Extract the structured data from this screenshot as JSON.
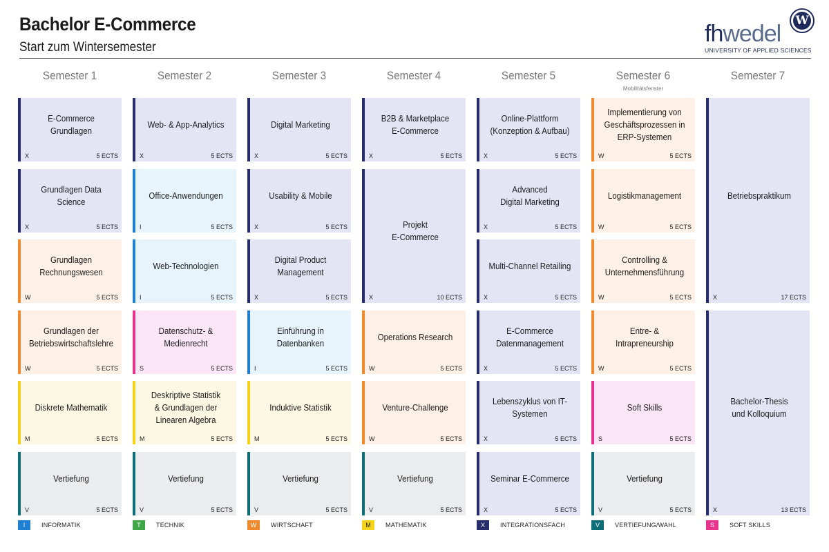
{
  "header": {
    "title": "Bachelor E-Commerce",
    "subtitle": "Start zum Wintersemester"
  },
  "logo": {
    "text_dark": "fh",
    "text_light": "wedel",
    "seal_letter": "W",
    "tagline": "UNIVERSITY OF APPLIED SCIENCES"
  },
  "semesters": [
    {
      "label": "Semester 1",
      "note": ""
    },
    {
      "label": "Semester 2",
      "note": ""
    },
    {
      "label": "Semester 3",
      "note": ""
    },
    {
      "label": "Semester 4",
      "note": ""
    },
    {
      "label": "Semester 5",
      "note": ""
    },
    {
      "label": "Semester 6",
      "note": "Mobilitätsfenster"
    },
    {
      "label": "Semester 7",
      "note": ""
    }
  ],
  "categories": {
    "I": {
      "label": "INFORMATIK",
      "bar": "#1f7fd1",
      "bg": "#e7f4fb"
    },
    "T": {
      "label": "TECHNIK",
      "bar": "#3fa648",
      "bg": "#e8f5e9"
    },
    "W": {
      "label": "WIRTSCHAFT",
      "bar": "#ef8a2e",
      "bg": "#fdf0e6"
    },
    "M": {
      "label": "MATHEMATIK",
      "bar": "#f5d21c",
      "bg": "#fdf8e4"
    },
    "X": {
      "label": "INTEGRATIONSFACH",
      "bar": "#262d6a",
      "bg": "#e3e5f5"
    },
    "V": {
      "label": "VERTIEFUNG/WAHL",
      "bar": "#0e6e78",
      "bg": "#ebecee"
    },
    "S": {
      "label": "SOFT SKILLS",
      "bar": "#e8348e",
      "bg": "#fbe6f7"
    }
  },
  "legend_order": [
    "I",
    "T",
    "W",
    "M",
    "X",
    "V",
    "S"
  ],
  "modules": [
    {
      "col": 0,
      "row": 0,
      "span": 1,
      "title": "E-Commerce Grundlagen",
      "type": "X",
      "ects": "5 ECTS"
    },
    {
      "col": 0,
      "row": 1,
      "span": 1,
      "title": "Grundlagen Data Science",
      "type": "X",
      "ects": "5 ECTS"
    },
    {
      "col": 0,
      "row": 2,
      "span": 1,
      "title": "Grundlagen\nRechnungswesen",
      "type": "W",
      "ects": "5 ECTS"
    },
    {
      "col": 0,
      "row": 3,
      "span": 1,
      "title": "Grundlagen der\nBetriebswirtschaftslehre",
      "type": "W",
      "ects": "5 ECTS"
    },
    {
      "col": 0,
      "row": 4,
      "span": 1,
      "title": "Diskrete Mathematik",
      "type": "M",
      "ects": "5 ECTS"
    },
    {
      "col": 0,
      "row": 5,
      "span": 1,
      "title": "Vertiefung",
      "type": "V",
      "ects": "5 ECTS"
    },
    {
      "col": 1,
      "row": 0,
      "span": 1,
      "title": "Web- & App-Analytics",
      "type": "X",
      "ects": "5 ECTS"
    },
    {
      "col": 1,
      "row": 1,
      "span": 1,
      "title": "Office-Anwendungen",
      "type": "I",
      "ects": "5 ECTS"
    },
    {
      "col": 1,
      "row": 2,
      "span": 1,
      "title": "Web-Technologien",
      "type": "I",
      "ects": "5 ECTS"
    },
    {
      "col": 1,
      "row": 3,
      "span": 1,
      "title": "Datenschutz- &\nMedienrecht",
      "type": "S",
      "ects": "5 ECTS"
    },
    {
      "col": 1,
      "row": 4,
      "span": 1,
      "title": "Deskriptive Statistik\n& Grundlagen der\nLinearen Algebra",
      "type": "M",
      "ects": "5 ECTS"
    },
    {
      "col": 1,
      "row": 5,
      "span": 1,
      "title": "Vertiefung",
      "type": "V",
      "ects": "5 ECTS"
    },
    {
      "col": 2,
      "row": 0,
      "span": 1,
      "title": "Digital Marketing",
      "type": "X",
      "ects": "5 ECTS"
    },
    {
      "col": 2,
      "row": 1,
      "span": 1,
      "title": "Usability & Mobile",
      "type": "X",
      "ects": "5 ECTS"
    },
    {
      "col": 2,
      "row": 2,
      "span": 1,
      "title": "Digital Product\nManagement",
      "type": "X",
      "ects": "5 ECTS"
    },
    {
      "col": 2,
      "row": 3,
      "span": 1,
      "title": "Einführung in\nDatenbanken",
      "type": "I",
      "ects": "5 ECTS"
    },
    {
      "col": 2,
      "row": 4,
      "span": 1,
      "title": "Induktive Statistik",
      "type": "M",
      "ects": "5 ECTS"
    },
    {
      "col": 2,
      "row": 5,
      "span": 1,
      "title": "Vertiefung",
      "type": "V",
      "ects": "5 ECTS"
    },
    {
      "col": 3,
      "row": 0,
      "span": 1,
      "title": "B2B & Marketplace\nE-Commerce",
      "type": "X",
      "ects": "5 ECTS"
    },
    {
      "col": 3,
      "row": 1,
      "span": 2,
      "title": "Projekt\nE-Commerce",
      "type": "X",
      "ects": "10 ECTS"
    },
    {
      "col": 3,
      "row": 3,
      "span": 1,
      "title": "Operations Research",
      "type": "W",
      "ects": "5 ECTS"
    },
    {
      "col": 3,
      "row": 4,
      "span": 1,
      "title": "Venture-Challenge",
      "type": "W",
      "ects": "5 ECTS"
    },
    {
      "col": 3,
      "row": 5,
      "span": 1,
      "title": "Vertiefung",
      "type": "V",
      "ects": "5 ECTS"
    },
    {
      "col": 4,
      "row": 0,
      "span": 1,
      "title": "Online-Plattform\n(Konzeption & Aufbau)",
      "type": "X",
      "ects": "5 ECTS"
    },
    {
      "col": 4,
      "row": 1,
      "span": 1,
      "title": "Advanced\nDigital Marketing",
      "type": "X",
      "ects": "5 ECTS"
    },
    {
      "col": 4,
      "row": 2,
      "span": 1,
      "title": "Multi-Channel Retailing",
      "type": "X",
      "ects": "5 ECTS"
    },
    {
      "col": 4,
      "row": 3,
      "span": 1,
      "title": "E-Commerce\nDatenmanagement",
      "type": "X",
      "ects": "5 ECTS"
    },
    {
      "col": 4,
      "row": 4,
      "span": 1,
      "title": "Lebenszyklus von IT-\nSystemen",
      "type": "X",
      "ects": "5 ECTS"
    },
    {
      "col": 4,
      "row": 5,
      "span": 1,
      "title": "Seminar E-Commerce",
      "type": "X",
      "ects": "5 ECTS"
    },
    {
      "col": 5,
      "row": 0,
      "span": 1,
      "title": "Implementierung von\nGeschäftsprozessen in\nERP-Systemen",
      "type": "W",
      "ects": "5 ECTS"
    },
    {
      "col": 5,
      "row": 1,
      "span": 1,
      "title": "Logistikmanagement",
      "type": "W",
      "ects": "5 ECTS"
    },
    {
      "col": 5,
      "row": 2,
      "span": 1,
      "title": "Controlling &\nUnternehmensführung",
      "type": "W",
      "ects": "5 ECTS"
    },
    {
      "col": 5,
      "row": 3,
      "span": 1,
      "title": "Entre- & Intrapreneurship",
      "type": "W",
      "ects": "5 ECTS"
    },
    {
      "col": 5,
      "row": 4,
      "span": 1,
      "title": "Soft Skills",
      "type": "S",
      "ects": "5 ECTS"
    },
    {
      "col": 5,
      "row": 5,
      "span": 1,
      "title": "Vertiefung",
      "type": "V",
      "ects": "5 ECTS"
    },
    {
      "col": 6,
      "row": 0,
      "span": 3,
      "title": "Betriebspraktikum",
      "type": "X",
      "ects": "17 ECTS"
    },
    {
      "col": 6,
      "row": 3,
      "span": 3,
      "title": "Bachelor-Thesis\nund Kolloquium",
      "type": "X",
      "ects": "13 ECTS"
    }
  ]
}
